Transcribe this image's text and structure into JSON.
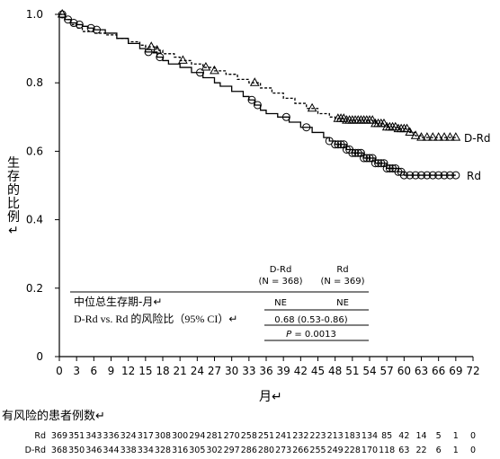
{
  "chart_data": {
    "type": "line",
    "subtype": "kaplan-meier",
    "title": "",
    "xlabel": "月",
    "ylabel": "生存的比例",
    "xlim": [
      0,
      72
    ],
    "ylim": [
      0,
      1.0
    ],
    "x_ticks": [
      0,
      3,
      6,
      9,
      12,
      15,
      18,
      21,
      24,
      27,
      30,
      33,
      36,
      39,
      42,
      45,
      48,
      51,
      54,
      57,
      60,
      63,
      66,
      69,
      72
    ],
    "y_ticks": [
      "0",
      "0.2",
      "0.4",
      "0.6",
      "0.8",
      "1.0"
    ],
    "grid": false,
    "series": [
      {
        "name": "Rd",
        "line_style": "solid",
        "censor_marker": "circle",
        "points": [
          [
            0,
            1.0
          ],
          [
            1,
            0.985
          ],
          [
            2,
            0.975
          ],
          [
            3,
            0.97
          ],
          [
            4,
            0.965
          ],
          [
            5,
            0.96
          ],
          [
            6,
            0.955
          ],
          [
            8,
            0.945
          ],
          [
            10,
            0.93
          ],
          [
            12,
            0.915
          ],
          [
            14,
            0.9
          ],
          [
            15,
            0.89
          ],
          [
            17,
            0.875
          ],
          [
            18,
            0.865
          ],
          [
            19,
            0.855
          ],
          [
            21,
            0.845
          ],
          [
            23,
            0.83
          ],
          [
            25,
            0.815
          ],
          [
            27,
            0.8
          ],
          [
            28,
            0.79
          ],
          [
            30,
            0.775
          ],
          [
            32,
            0.76
          ],
          [
            33,
            0.75
          ],
          [
            34,
            0.735
          ],
          [
            35,
            0.72
          ],
          [
            36,
            0.71
          ],
          [
            38,
            0.7
          ],
          [
            40,
            0.685
          ],
          [
            42,
            0.67
          ],
          [
            44,
            0.655
          ],
          [
            46,
            0.64
          ],
          [
            47,
            0.63
          ],
          [
            48,
            0.62
          ],
          [
            50,
            0.605
          ],
          [
            51,
            0.595
          ],
          [
            53,
            0.58
          ],
          [
            55,
            0.565
          ],
          [
            57,
            0.55
          ],
          [
            59,
            0.54
          ],
          [
            60,
            0.53
          ],
          [
            64,
            0.53
          ],
          [
            69,
            0.53
          ]
        ],
        "censored": [
          0.5,
          1.5,
          2.5,
          3.5,
          5.5,
          6.5,
          15.5,
          17.5,
          24.5,
          33.5,
          34.5,
          39.5,
          43,
          47,
          48,
          48.5,
          49,
          49.5,
          50,
          50.5,
          51,
          51.5,
          52,
          52.5,
          53,
          53.5,
          54,
          54.5,
          55,
          55.5,
          56,
          56.5,
          57,
          57.5,
          58,
          58.5,
          59,
          59.5,
          60,
          61,
          62,
          63,
          64,
          65,
          66,
          67,
          68,
          69
        ]
      },
      {
        "name": "D-Rd",
        "line_style": "dashed",
        "censor_marker": "triangle",
        "points": [
          [
            0,
            1.0
          ],
          [
            1,
            0.985
          ],
          [
            2,
            0.97
          ],
          [
            3,
            0.96
          ],
          [
            4,
            0.95
          ],
          [
            6,
            0.945
          ],
          [
            8,
            0.94
          ],
          [
            10,
            0.93
          ],
          [
            12,
            0.92
          ],
          [
            14,
            0.91
          ],
          [
            15,
            0.905
          ],
          [
            17,
            0.895
          ],
          [
            18,
            0.885
          ],
          [
            20,
            0.875
          ],
          [
            21,
            0.865
          ],
          [
            23,
            0.855
          ],
          [
            25,
            0.845
          ],
          [
            27,
            0.835
          ],
          [
            29,
            0.825
          ],
          [
            31,
            0.81
          ],
          [
            33,
            0.8
          ],
          [
            35,
            0.785
          ],
          [
            37,
            0.77
          ],
          [
            39,
            0.755
          ],
          [
            41,
            0.74
          ],
          [
            43,
            0.725
          ],
          [
            45,
            0.71
          ],
          [
            47,
            0.7
          ],
          [
            48,
            0.695
          ],
          [
            50,
            0.69
          ],
          [
            53,
            0.69
          ],
          [
            55,
            0.68
          ],
          [
            57,
            0.67
          ],
          [
            59,
            0.665
          ],
          [
            61,
            0.655
          ],
          [
            62,
            0.645
          ],
          [
            63,
            0.64
          ],
          [
            69,
            0.64
          ]
        ],
        "censored": [
          0.5,
          16,
          17,
          21.5,
          25.5,
          27,
          34,
          44,
          48.5,
          49,
          49.5,
          50,
          50.5,
          51,
          51.5,
          52,
          52.5,
          53,
          53.5,
          54,
          54.5,
          55,
          55.5,
          56,
          56.5,
          57,
          57.5,
          58,
          58.5,
          59,
          59.5,
          60,
          60.5,
          61,
          62,
          63,
          64,
          65,
          66,
          67,
          68,
          69
        ]
      }
    ],
    "stats_table": {
      "col_headers": [
        "D-Rd\n(N = 368)",
        "Rd\n(N = 369)"
      ],
      "rows": [
        {
          "label": "中位总生存期-月↵",
          "values": [
            "NE",
            "NE"
          ]
        },
        {
          "label": "D-Rd vs. Rd 的风险比（95% CI）↵",
          "values": [
            "0.68 (0.53-0.86)"
          ]
        },
        {
          "label": "",
          "values": [
            "P = 0.0013"
          ]
        }
      ]
    },
    "risk_table": {
      "title": "有风险的患者例数↵",
      "rows": [
        {
          "label": "Rd",
          "values": [
            "369",
            "351",
            "343",
            "336",
            "324",
            "317",
            "308",
            "300",
            "294",
            "281",
            "270",
            "258",
            "251",
            "241",
            "232",
            "223",
            "213",
            "183",
            "134",
            "85",
            "42",
            "14",
            "5",
            "1",
            "0"
          ]
        },
        {
          "label": "D-Rd",
          "values": [
            "368",
            "350",
            "346",
            "344",
            "338",
            "334",
            "328",
            "316",
            "305",
            "302",
            "297",
            "286",
            "280",
            "273",
            "266",
            "255",
            "249",
            "228",
            "170",
            "118",
            "63",
            "22",
            "6",
            "1",
            "0"
          ]
        }
      ]
    }
  },
  "labels": {
    "xlabel_text": "月↵",
    "ylabel_chars": [
      "生",
      "存",
      "的",
      "比",
      "例",
      "↵"
    ],
    "series_end_rd": "Rd",
    "series_end_drd": "D-Rd",
    "col1_line1": "D-Rd",
    "col1_line2": "(N = 368)",
    "col2_line1": "Rd",
    "col2_line2": "(N = 369)",
    "row1_label": "中位总生存期-月↵",
    "row1_v1": "NE",
    "row1_v2": "NE",
    "row2_label": "D-Rd vs. Rd 的风险比（95% CI）↵",
    "row2_value": "0.68 (0.53-0.86)",
    "row3_p_italic": "P",
    "row3_p_rest": " = 0.0013",
    "risk_title": "有风险的患者例数↵",
    "risk_label_rd": "Rd",
    "risk_label_drd": "D-Rd"
  }
}
